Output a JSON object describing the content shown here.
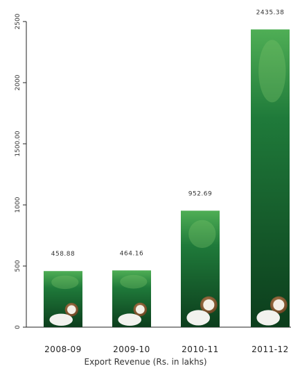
{
  "chart_data": {
    "type": "bar",
    "categories": [
      "2008-09",
      "2009-10",
      "2010-11",
      "2011-12"
    ],
    "values": [
      458.88,
      464.16,
      952.69,
      2435.38
    ],
    "value_labels": [
      "458.88",
      "464.16",
      "952.69",
      "2435.38"
    ],
    "xlabel": "Export Revenue (Rs. in lakhs)",
    "ylabel": "",
    "ylim": [
      0,
      2500
    ],
    "y_ticks": [
      0,
      500,
      1000,
      1500,
      2000,
      2500
    ],
    "y_tick_labels": [
      "0",
      "500",
      "1000",
      "1500.00",
      "2000",
      "2500"
    ],
    "bar_fill": "product-package-image",
    "colors": {
      "bar_dark": "#0c3d1c",
      "bar_mid": "#1f7a3a",
      "bar_light": "#4fae55",
      "axis": "#222222"
    }
  }
}
